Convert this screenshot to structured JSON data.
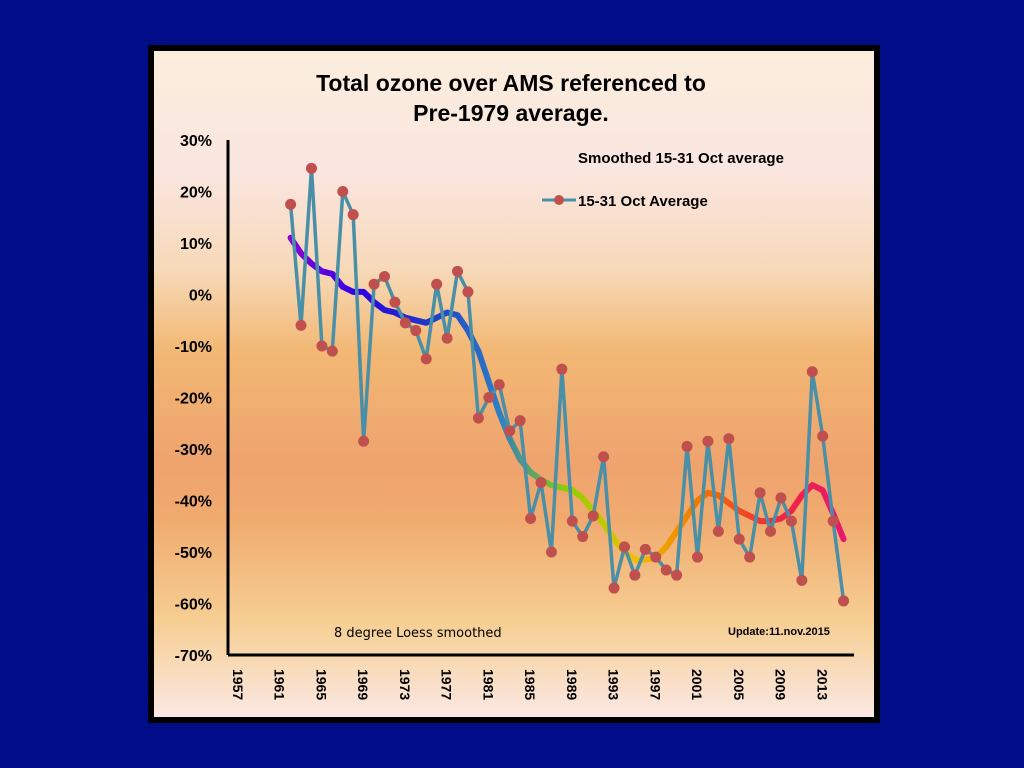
{
  "chart_data": {
    "type": "line",
    "title_line1": "Total ozone over AMS referenced to",
    "title_line2": "Pre-1979 average.",
    "y_ticks": [
      "30%",
      "20%",
      "10%",
      "0%",
      "-10%",
      "-20%",
      "-30%",
      "-40%",
      "-50%",
      "-60%",
      "-70%"
    ],
    "ylim": [
      -70,
      30
    ],
    "x_ticks": [
      "1957",
      "1961",
      "1965",
      "1969",
      "1973",
      "1977",
      "1981",
      "1985",
      "1989",
      "1993",
      "1997",
      "2001",
      "2005",
      "2009",
      "2013"
    ],
    "xlim": [
      1957,
      2017
    ],
    "grid": false,
    "legend_position": "top-right",
    "series": [
      {
        "name": "15-31 Oct Average",
        "color": "#4a8fa8",
        "marker_color": "#c0504d",
        "x": [
          1963,
          1964,
          1965,
          1966,
          1967,
          1968,
          1969,
          1970,
          1971,
          1972,
          1973,
          1974,
          1975,
          1976,
          1977,
          1978,
          1979,
          1980,
          1981,
          1982,
          1983,
          1984,
          1985,
          1986,
          1987,
          1988,
          1989,
          1990,
          1991,
          1992,
          1993,
          1994,
          1995,
          1996,
          1997,
          1998,
          1999,
          2000,
          2001,
          2002,
          2003,
          2004,
          2005,
          2006,
          2007,
          2008,
          2009,
          2010,
          2011,
          2012,
          2013,
          2014,
          2015,
          2016
        ],
        "values": [
          17.5,
          -6,
          24.5,
          -10,
          -11,
          20,
          15.5,
          -28.5,
          2,
          3.5,
          -1.5,
          -5.5,
          -7,
          -12.5,
          2,
          -8.5,
          4.5,
          0.5,
          -24,
          -20,
          -17.5,
          -26.5,
          -24.5,
          -43.5,
          -36.5,
          -50,
          -14.5,
          -44,
          -47,
          -43,
          -31.5,
          -57,
          -49,
          -54.5,
          -49.5,
          -51,
          -53.5,
          -54.5,
          -29.5,
          -51,
          -28.5,
          -46,
          -28,
          -47.5,
          -51,
          -38.5,
          -46,
          -39.5,
          -44,
          -55.5,
          -15,
          -27.5,
          -44,
          -59.5
        ]
      },
      {
        "name": "Smoothed 15-31 Oct average",
        "color": "gradient",
        "gradient_colors": [
          "#8a00d8",
          "#2d00e6",
          "#1e3ac8",
          "#2c7cc8",
          "#8cd000",
          "#f0c000",
          "#f07000",
          "#f02840",
          "#e8186e"
        ],
        "x": [
          1963,
          1964,
          1965,
          1966,
          1967,
          1968,
          1969,
          1970,
          1971,
          1972,
          1973,
          1974,
          1975,
          1976,
          1977,
          1978,
          1979,
          1980,
          1981,
          1982,
          1983,
          1984,
          1985,
          1986,
          1987,
          1988,
          1989,
          1990,
          1991,
          1992,
          1993,
          1994,
          1995,
          1996,
          1997,
          1998,
          1999,
          2000,
          2001,
          2002,
          2003,
          2004,
          2005,
          2006,
          2007,
          2008,
          2009,
          2010,
          2011,
          2012,
          2013,
          2014,
          2015,
          2016
        ],
        "values": [
          11,
          8,
          6,
          4.5,
          4,
          1.5,
          0.5,
          0.5,
          -1.5,
          -3,
          -3.5,
          -4.5,
          -5,
          -5.5,
          -4.5,
          -3.5,
          -4,
          -7,
          -11,
          -17,
          -23,
          -28,
          -32,
          -34.5,
          -36,
          -37,
          -37.5,
          -38,
          -39.5,
          -42,
          -44.5,
          -47.5,
          -50,
          -51.5,
          -51.5,
          -51,
          -49,
          -46,
          -43,
          -40,
          -38.5,
          -39,
          -40.5,
          -42,
          -43,
          -44,
          -44,
          -43.5,
          -42,
          -39,
          -37,
          -38,
          -42.5,
          -47.5
        ]
      }
    ]
  },
  "annotations": {
    "loess_note": "8 degree Loess smoothed",
    "update_note": "Update:11.nov.2015"
  }
}
